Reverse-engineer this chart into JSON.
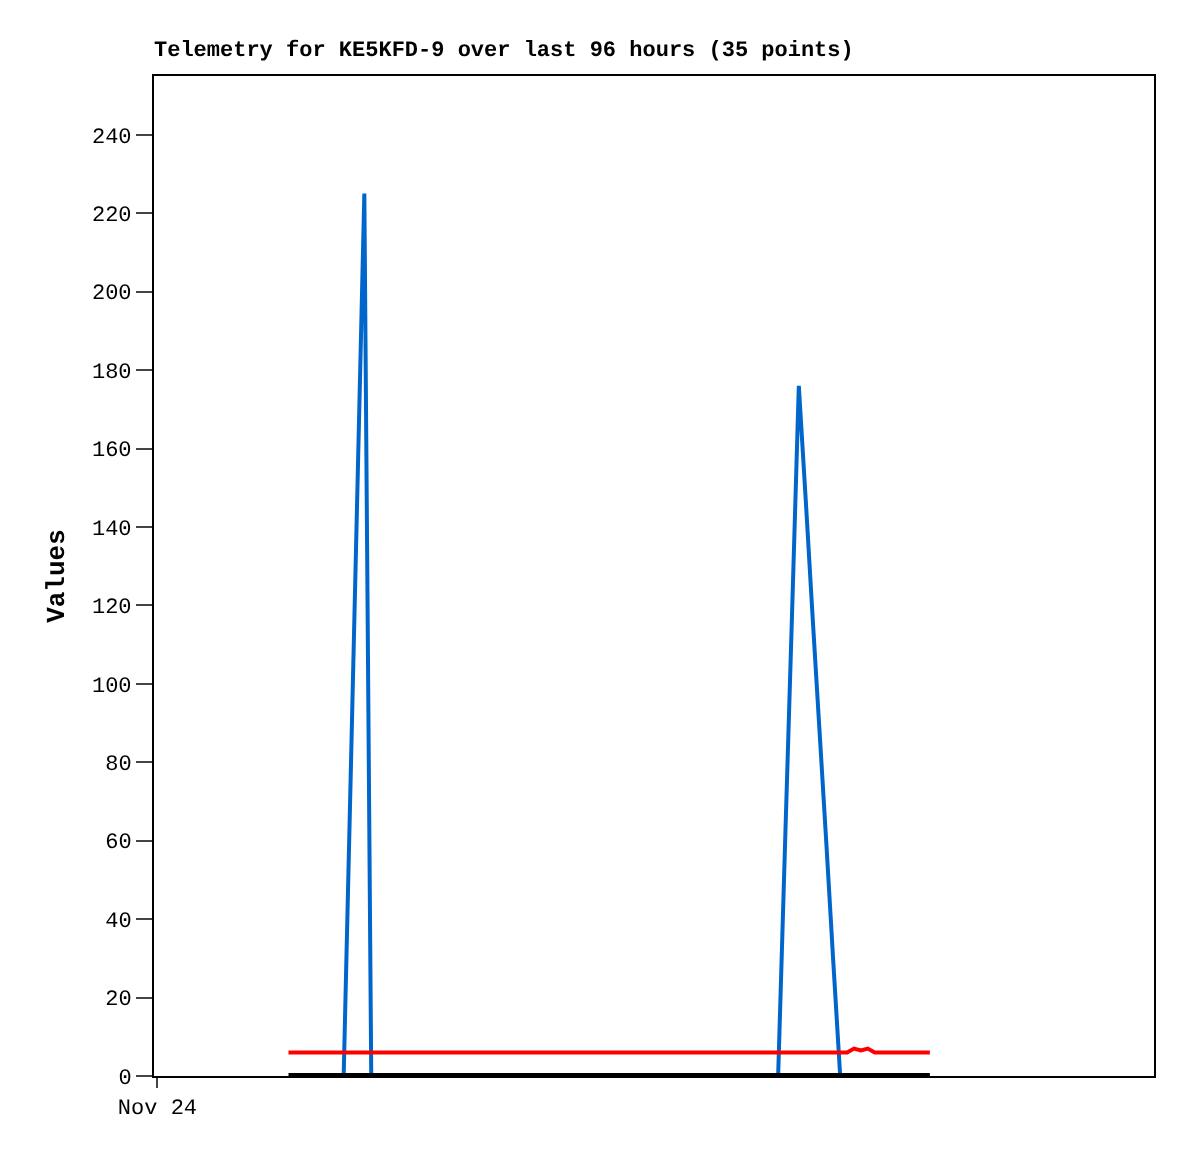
{
  "chart_data": {
    "type": "line",
    "title": "Telemetry for KE5KFD-9 over last 96 hours (35 points)",
    "ylabel": "Values",
    "categories": [
      "Nov 24",
      null,
      null,
      null,
      null,
      null,
      null,
      null,
      null,
      null,
      null,
      null,
      null,
      null,
      null,
      null,
      null,
      null,
      null,
      null,
      null,
      null,
      null,
      null,
      null,
      null,
      null,
      null,
      null,
      null,
      null,
      null,
      null,
      null,
      null,
      null,
      null,
      null,
      null,
      null,
      null,
      null,
      null,
      null,
      null,
      null,
      null,
      null,
      null,
      null,
      null,
      null,
      null,
      null,
      null,
      null,
      null,
      null,
      null,
      null,
      null,
      null,
      null,
      null,
      null,
      null,
      null,
      null,
      null,
      null,
      null,
      null,
      null,
      null,
      null,
      null,
      null,
      null,
      null,
      null,
      null,
      null,
      null,
      null,
      null,
      null,
      null,
      null,
      null,
      null,
      null,
      null,
      null,
      null,
      null,
      null,
      null,
      null,
      null,
      null,
      null,
      null,
      null,
      null,
      null,
      null,
      null,
      null,
      null,
      null,
      null,
      null,
      null,
      null,
      null,
      null,
      null,
      null,
      null,
      null,
      null,
      null,
      null,
      null,
      null,
      null,
      null,
      null,
      null,
      null,
      null,
      null,
      null,
      null,
      null,
      null,
      null,
      null,
      null,
      null,
      null,
      null,
      null,
      null,
      null
    ],
    "ylim": [
      0,
      255
    ],
    "yticks": [
      0,
      20,
      40,
      60,
      80,
      100,
      120,
      140,
      160,
      180,
      200,
      220,
      240
    ],
    "legend": false,
    "marker": "none",
    "line_style": "solid",
    "series": [
      {
        "color": "#0066cc",
        "values": [
          null,
          null,
          null,
          null,
          null,
          null,
          null,
          null,
          null,
          null,
          null,
          null,
          null,
          null,
          null,
          null,
          null,
          null,
          null,
          null,
          null,
          null,
          null,
          null,
          null,
          null,
          null,
          0,
          75,
          150,
          225,
          0,
          null,
          null,
          null,
          null,
          null,
          null,
          null,
          null,
          null,
          null,
          null,
          null,
          null,
          null,
          null,
          null,
          null,
          null,
          null,
          null,
          null,
          null,
          null,
          null,
          null,
          null,
          null,
          null,
          null,
          null,
          null,
          null,
          null,
          null,
          null,
          null,
          null,
          null,
          null,
          null,
          null,
          null,
          null,
          null,
          null,
          null,
          null,
          null,
          null,
          null,
          null,
          null,
          null,
          null,
          null,
          null,
          null,
          null,
          0,
          59,
          117,
          176,
          147,
          117,
          88,
          59,
          29,
          0,
          null,
          null,
          null,
          null,
          null,
          null,
          null,
          null,
          null,
          null,
          null,
          null,
          null,
          null,
          null,
          null,
          null,
          null,
          null,
          null,
          null,
          null,
          null,
          null,
          null,
          null,
          null,
          null,
          null,
          null,
          null,
          null,
          null,
          null,
          null,
          null,
          null,
          null,
          null,
          null,
          null,
          null,
          null,
          null,
          null
        ]
      },
      {
        "color": "#ff0000",
        "values": [
          null,
          null,
          null,
          null,
          null,
          null,
          null,
          null,
          null,
          null,
          null,
          null,
          null,
          null,
          null,
          null,
          null,
          null,
          null,
          6,
          6,
          6,
          6,
          6,
          6,
          6,
          6,
          6,
          6,
          6,
          6,
          6,
          6,
          6,
          6,
          6,
          6,
          6,
          6,
          6,
          6,
          6,
          6,
          6,
          6,
          6,
          6,
          6,
          6,
          6,
          6,
          6,
          6,
          6,
          6,
          6,
          6,
          6,
          6,
          6,
          6,
          6,
          6,
          6,
          6,
          6,
          6,
          6,
          6,
          6,
          6,
          6,
          6,
          6,
          6,
          6,
          6,
          6,
          6,
          6,
          6,
          6,
          6,
          6,
          6,
          6,
          6,
          6,
          6,
          6,
          6,
          6,
          6,
          6,
          6,
          6,
          6,
          6,
          6,
          6,
          6,
          7,
          6.5,
          7,
          6,
          6,
          6,
          6,
          6,
          6,
          6,
          6,
          6,
          null,
          null,
          null,
          null,
          null,
          null,
          null,
          null,
          null,
          null,
          null,
          null,
          null,
          null,
          null,
          null,
          null,
          null,
          null,
          null,
          null,
          null,
          null,
          null,
          null,
          null,
          null,
          null,
          null,
          null,
          null,
          null
        ]
      },
      {
        "color": "#000000",
        "values": [
          null,
          null,
          null,
          null,
          null,
          null,
          null,
          null,
          null,
          null,
          null,
          null,
          null,
          null,
          null,
          null,
          null,
          null,
          null,
          0,
          0,
          0,
          0,
          0,
          0,
          0,
          0,
          0,
          0,
          0,
          0,
          0,
          0,
          0,
          0,
          0,
          0,
          0,
          0,
          0,
          0,
          0,
          0,
          0,
          0,
          0,
          0,
          0,
          0,
          0,
          0,
          0,
          0,
          0,
          0,
          0,
          0,
          0,
          0,
          0,
          0,
          0,
          0,
          0,
          0,
          0,
          0,
          0,
          0,
          0,
          0,
          0,
          0,
          0,
          0,
          0,
          0,
          0,
          0,
          0,
          0,
          0,
          0,
          0,
          0,
          0,
          0,
          0,
          0,
          0,
          0,
          0,
          0,
          0,
          0,
          0,
          0,
          0,
          0,
          0,
          0,
          0,
          0,
          0,
          0,
          0,
          0,
          0,
          0,
          0,
          0,
          0,
          0,
          null,
          null,
          null,
          null,
          null,
          null,
          null,
          null,
          null,
          null,
          null,
          null,
          null,
          null,
          null,
          null,
          null,
          null,
          null,
          null,
          null,
          null,
          null,
          null,
          null,
          null,
          null,
          null,
          null,
          null,
          null,
          null
        ]
      }
    ]
  }
}
